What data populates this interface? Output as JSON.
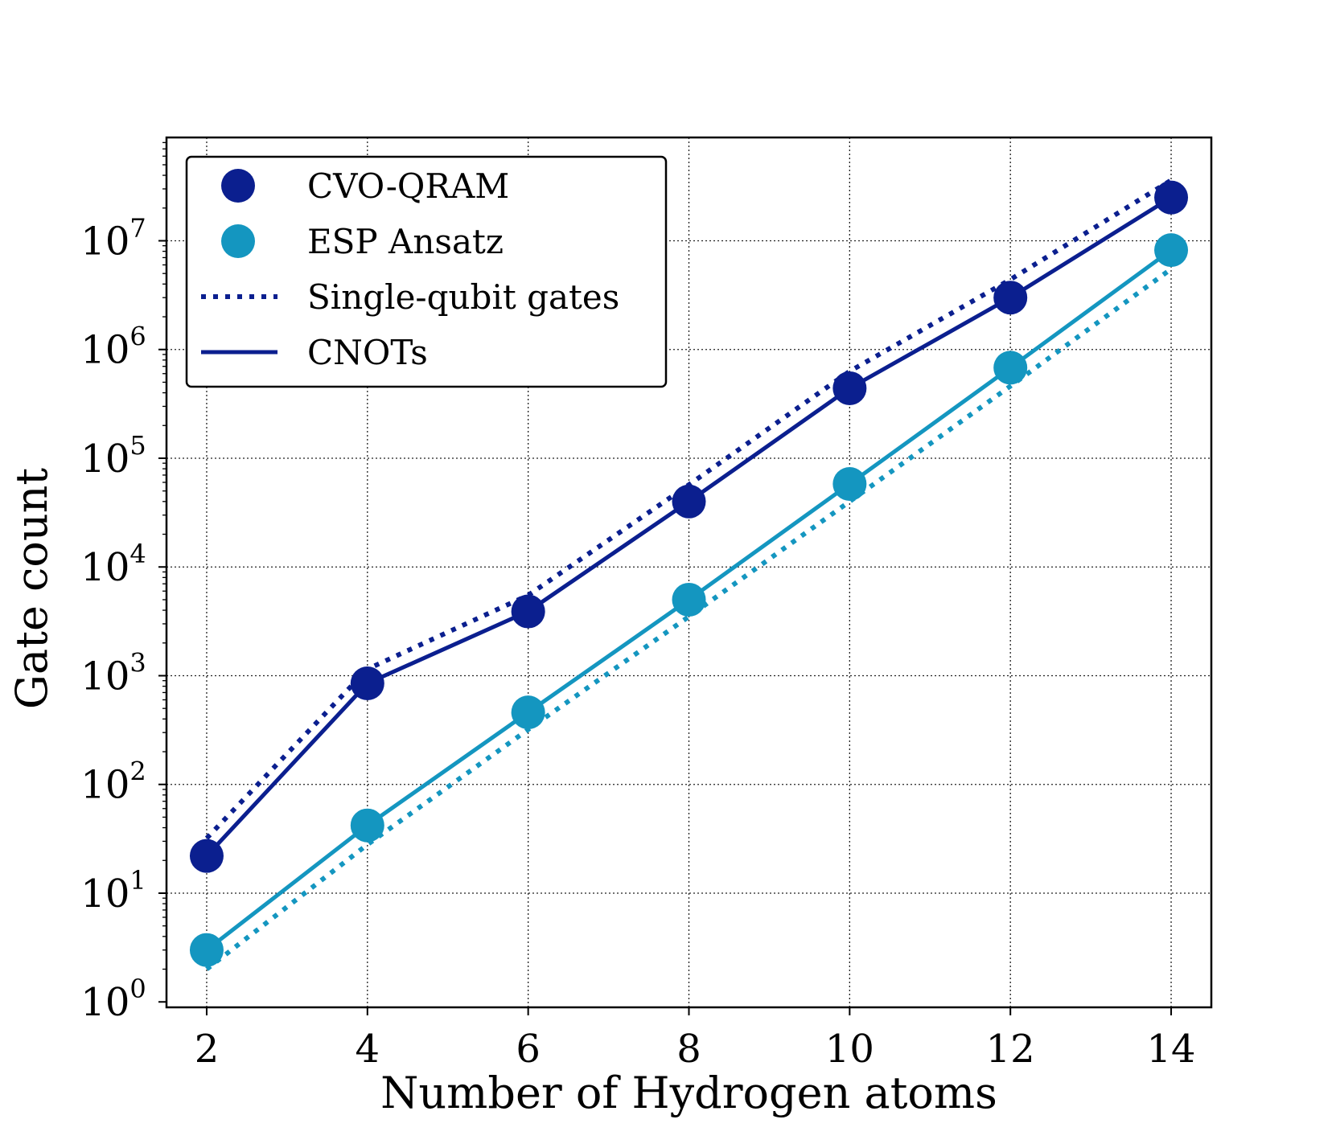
{
  "chart_data": {
    "type": "line",
    "title": "",
    "xlabel": "Number of Hydrogen atoms",
    "ylabel": "Gate count",
    "yscale": "log",
    "x": [
      2,
      4,
      6,
      8,
      10,
      12,
      14
    ],
    "xticks": [
      "2",
      "4",
      "6",
      "8",
      "10",
      "12",
      "14"
    ],
    "yticks": [
      {
        "base": "10",
        "exp": "0"
      },
      {
        "base": "10",
        "exp": "1"
      },
      {
        "base": "10",
        "exp": "2"
      },
      {
        "base": "10",
        "exp": "3"
      },
      {
        "base": "10",
        "exp": "4"
      },
      {
        "base": "10",
        "exp": "5"
      },
      {
        "base": "10",
        "exp": "6"
      },
      {
        "base": "10",
        "exp": "7"
      }
    ],
    "xlim": [
      1.5,
      14.5
    ],
    "ylim_log10": [
      -0.05,
      7.95
    ],
    "grid": true,
    "legend_position": "top-left",
    "series": [
      {
        "name": "CVO-QRAM",
        "gate": "CNOTs",
        "style": "solid",
        "marker": true,
        "color": "#0b1f8f",
        "values": [
          22,
          850,
          3900,
          40000,
          440000,
          3000000,
          25000000
        ]
      },
      {
        "name": "CVO-QRAM",
        "gate": "Single-qubit gates",
        "style": "dotted",
        "marker": false,
        "color": "#0b1f8f",
        "values": [
          32,
          1150,
          5500,
          57000,
          630000,
          4400000,
          36000000
        ]
      },
      {
        "name": "ESP Ansatz",
        "gate": "CNOTs",
        "style": "solid",
        "marker": true,
        "color": "#1496c0",
        "values": [
          3,
          42,
          460,
          5000,
          58000,
          680000,
          8200000
        ]
      },
      {
        "name": "ESP Ansatz",
        "gate": "Single-qubit gates",
        "style": "dotted",
        "marker": false,
        "color": "#1496c0",
        "values": [
          2,
          28,
          320,
          3500,
          40000,
          460000,
          5500000
        ]
      }
    ],
    "legend": [
      {
        "label": "CVO-QRAM",
        "kind": "marker",
        "color": "#0b1f8f"
      },
      {
        "label": "ESP Ansatz",
        "kind": "marker",
        "color": "#1496c0"
      },
      {
        "label": "Single-qubit gates",
        "kind": "dotted",
        "color": "#0b1f8f"
      },
      {
        "label": "CNOTs",
        "kind": "solid",
        "color": "#0b1f8f"
      }
    ]
  }
}
